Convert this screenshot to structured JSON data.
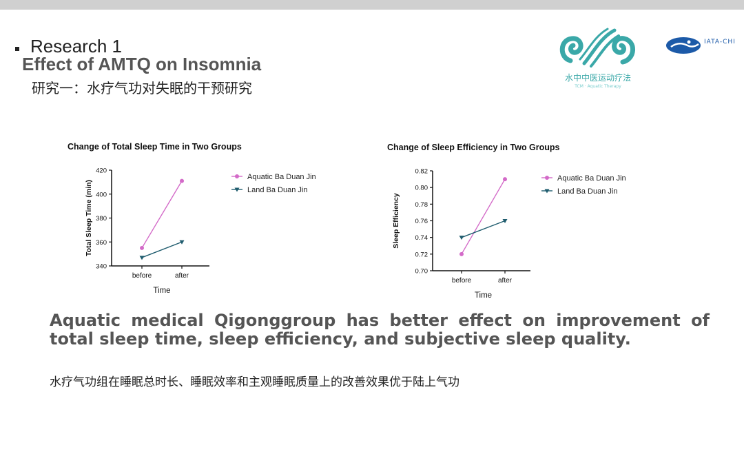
{
  "slide": {
    "title": "Research 1",
    "subtitle_en": "Effect of AMTQ on Insomnia",
    "subtitle_cn": "研究一：水疗气功对失眠的干预研究",
    "logo_cn": "水中中医运动疗法",
    "logo_en": "TCM · Aquatic Therapy",
    "logo2_text": "IATA-CHI",
    "conclusion_en": "Aquatic medical Qigonggroup has better effect on improvement of total sleep time, sleep efficiency, and subjective sleep quality.",
    "conclusion_cn": "水疗气功组在睡眠总时长、睡眠效率和主观睡眠质量上的改善效果优于陆上气功"
  },
  "colors": {
    "aquatic": "#d36ac8",
    "land": "#1f5c6e",
    "logo": "#3aa8a8",
    "logo2": "#1c5aa8",
    "topbar": "#d0d0d0"
  },
  "chart_data": [
    {
      "type": "line",
      "title": "Change of Total Sleep Time in Two Groups",
      "xlabel": "Time",
      "ylabel": "Total Sleep Time (min)",
      "categories": [
        "before",
        "after"
      ],
      "ylim": [
        340,
        420
      ],
      "yticks": [
        "340",
        "360",
        "380",
        "400",
        "420"
      ],
      "series": [
        {
          "name": "Aquatic Ba Duan Jin",
          "values": [
            355,
            411
          ],
          "marker": "circle",
          "color": "#d36ac8"
        },
        {
          "name": "Land Ba Duan Jin",
          "values": [
            347,
            360
          ],
          "marker": "triangle",
          "color": "#1f5c6e"
        }
      ],
      "legend": "right"
    },
    {
      "type": "line",
      "title": "Change of Sleep Efficiency in Two Groups",
      "xlabel": "Time",
      "ylabel": "Sleep Efficiency",
      "categories": [
        "before",
        "after"
      ],
      "ylim": [
        0.7,
        0.82
      ],
      "yticks": [
        "0.70",
        "0.72",
        "0.74",
        "0.76",
        "0.78",
        "0.80",
        "0.82"
      ],
      "series": [
        {
          "name": "Aquatic Ba Duan Jin",
          "values": [
            0.72,
            0.81
          ],
          "marker": "circle",
          "color": "#d36ac8"
        },
        {
          "name": "Land Ba Duan Jin",
          "values": [
            0.74,
            0.76
          ],
          "marker": "triangle",
          "color": "#1f5c6e"
        }
      ],
      "legend": "right"
    }
  ]
}
